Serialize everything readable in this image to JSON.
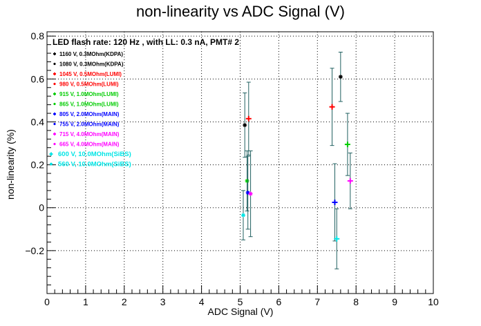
{
  "chart_data": {
    "type": "scatter",
    "title": "non-linearity vs ADC Signal (V)",
    "xlabel": "ADC Signal (V)",
    "ylabel": "non-linearity (%)",
    "xlim": [
      0,
      10
    ],
    "ylim": [
      -0.4,
      0.82
    ],
    "x_ticks": [
      0,
      1,
      2,
      3,
      4,
      5,
      6,
      7,
      8,
      9,
      10
    ],
    "x_tick_labels": [
      "0",
      "1",
      "2",
      "3",
      "4",
      "5",
      "6",
      "7",
      "8",
      "9",
      "10"
    ],
    "y_ticks": [
      -0.2,
      0,
      0.2,
      0.4,
      0.6,
      0.8
    ],
    "y_tick_labels": [
      "−0.2",
      "0",
      "0.2",
      "0.4",
      "0.6",
      "0.8"
    ],
    "grid": true,
    "legend_position": "top-left",
    "annotation": "LED flash rate: 120 Hz , with LL: 0.3 nA, PMT# 2",
    "series": [
      {
        "name": "1160 V, 0.3MOhm(KDPA)",
        "marker": "+",
        "color": "#000000",
        "points": []
      },
      {
        "name": "1080 V, 0.3MOhm(KDPA)",
        "marker": "*",
        "color": "#000000",
        "points": [
          {
            "x": 5.12,
            "y": 0.385,
            "err": 0.15
          },
          {
            "x": 7.6,
            "y": 0.61,
            "err": 0.115
          }
        ]
      },
      {
        "name": "1045 V, 0.5MOhm(LUMI)",
        "marker": "+",
        "color": "#ff0000",
        "points": [
          {
            "x": 5.22,
            "y": 0.415,
            "err": 0.17
          },
          {
            "x": 7.38,
            "y": 0.47,
            "err": 0.18
          }
        ]
      },
      {
        "name": "980 V, 0.5MOhm(LUMI)",
        "marker": "*",
        "color": "#ff0000",
        "points": []
      },
      {
        "name": "915 V, 1.0MOhm(LUMI)",
        "marker": "+",
        "color": "#00cc00",
        "points": [
          {
            "x": 7.78,
            "y": 0.295,
            "err": 0.145
          }
        ]
      },
      {
        "name": "865 V, 1.0MOhm(LUMI)",
        "marker": "*",
        "color": "#00cc00",
        "points": [
          {
            "x": 5.18,
            "y": 0.125,
            "err": 0.14
          }
        ]
      },
      {
        "name": "805 V, 2.0MOhm(MAIN)",
        "marker": "+",
        "color": "#0000ff",
        "points": [
          {
            "x": 7.45,
            "y": 0.025,
            "err": 0.18
          }
        ]
      },
      {
        "name": "755 V, 2.0MOhm(MAIN)",
        "marker": "*",
        "color": "#0000ff",
        "points": [
          {
            "x": 5.2,
            "y": 0.07,
            "err": 0.17
          }
        ]
      },
      {
        "name": "715 V, 4.0MOhm(MAIN)",
        "marker": "+",
        "color": "#ff00ff",
        "points": [
          {
            "x": 7.85,
            "y": 0.125,
            "err": 0.13
          }
        ]
      },
      {
        "name": "665 V, 4.0MOhm(MAIN)",
        "marker": "*",
        "color": "#ff00ff",
        "points": [
          {
            "x": 5.27,
            "y": 0.065,
            "err": 0.2
          }
        ]
      },
      {
        "name": "600 V, 10.0MOhm(SiBS)",
        "marker": "+",
        "color": "#00e5e5",
        "points": [
          {
            "x": 7.5,
            "y": -0.145,
            "err": 0.14
          }
        ]
      },
      {
        "name": "560 V, 10.0MOhm(SiBS)",
        "marker": "*",
        "color": "#00e5e5",
        "points": [
          {
            "x": 5.08,
            "y": -0.035,
            "err": 0.115
          }
        ]
      }
    ]
  }
}
